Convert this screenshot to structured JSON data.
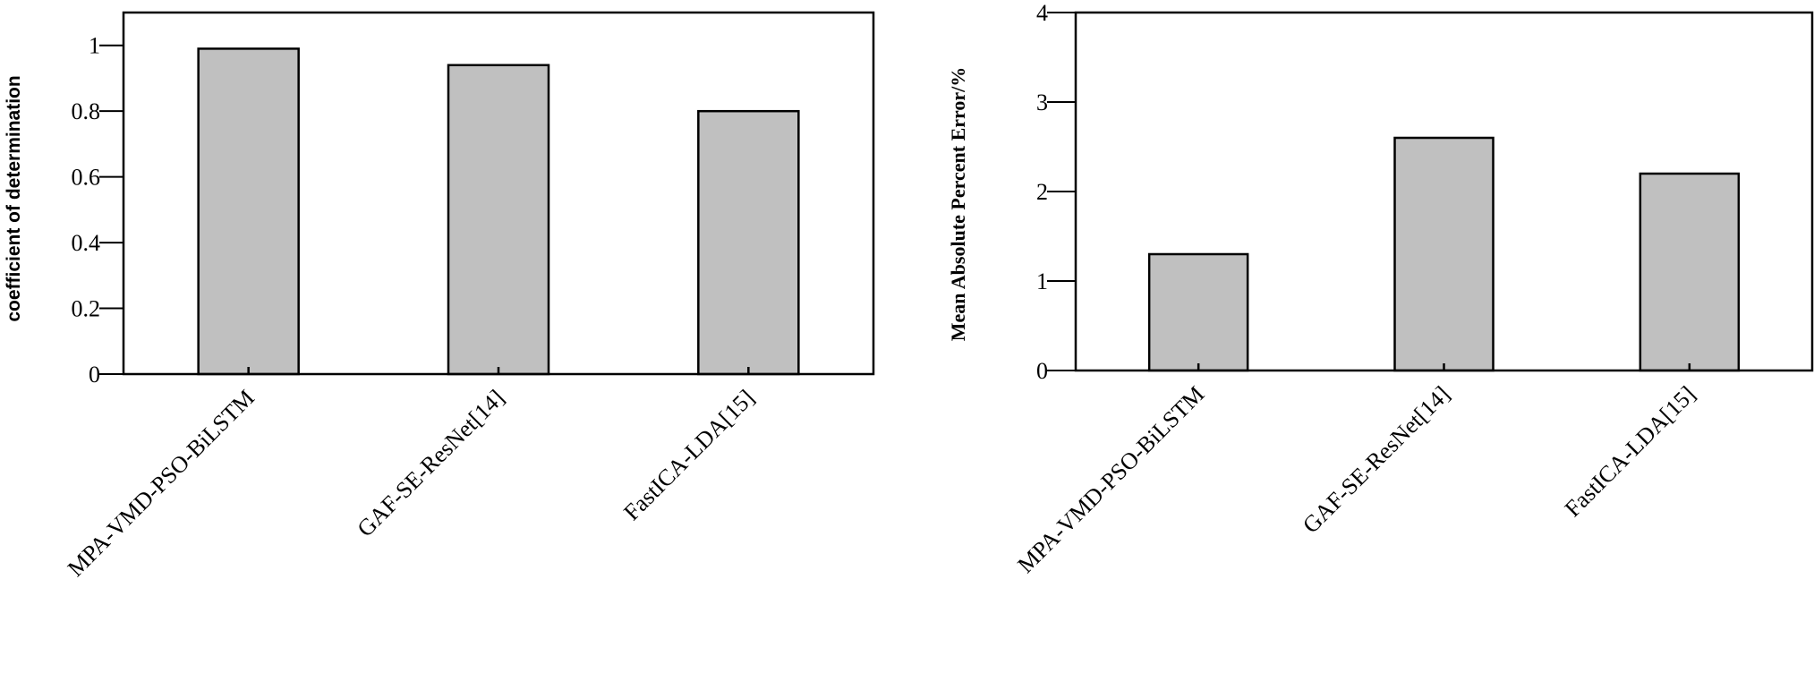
{
  "chart_data": [
    {
      "type": "bar",
      "categories": [
        "MPA-VMD-PSO-BiLSTM",
        "GAF-SE-ResNet[14]",
        "FastICA-LDA[15]"
      ],
      "values": [
        0.99,
        0.94,
        0.8
      ],
      "title": "",
      "xlabel": "",
      "ylabel": "coefficient of determination",
      "ylim": [
        0,
        1.1
      ],
      "yticks": [
        "0",
        "0.2",
        "0.4",
        "0.6",
        "0.8",
        "1"
      ],
      "bar_color": "#c0c0c0",
      "grid": false
    },
    {
      "type": "bar",
      "categories": [
        "MPA-VMD-PSO-BiLSTM",
        "GAF-SE-ResNet[14]",
        "FastICA-LDA[15]"
      ],
      "values": [
        1.3,
        2.6,
        2.2
      ],
      "title": "",
      "xlabel": "",
      "ylabel": "Mean Absolute Percent Error/%",
      "ylim": [
        0,
        4
      ],
      "yticks": [
        "0",
        "1",
        "2",
        "3",
        "4"
      ],
      "bar_color": "#c0c0c0",
      "grid": false
    }
  ]
}
